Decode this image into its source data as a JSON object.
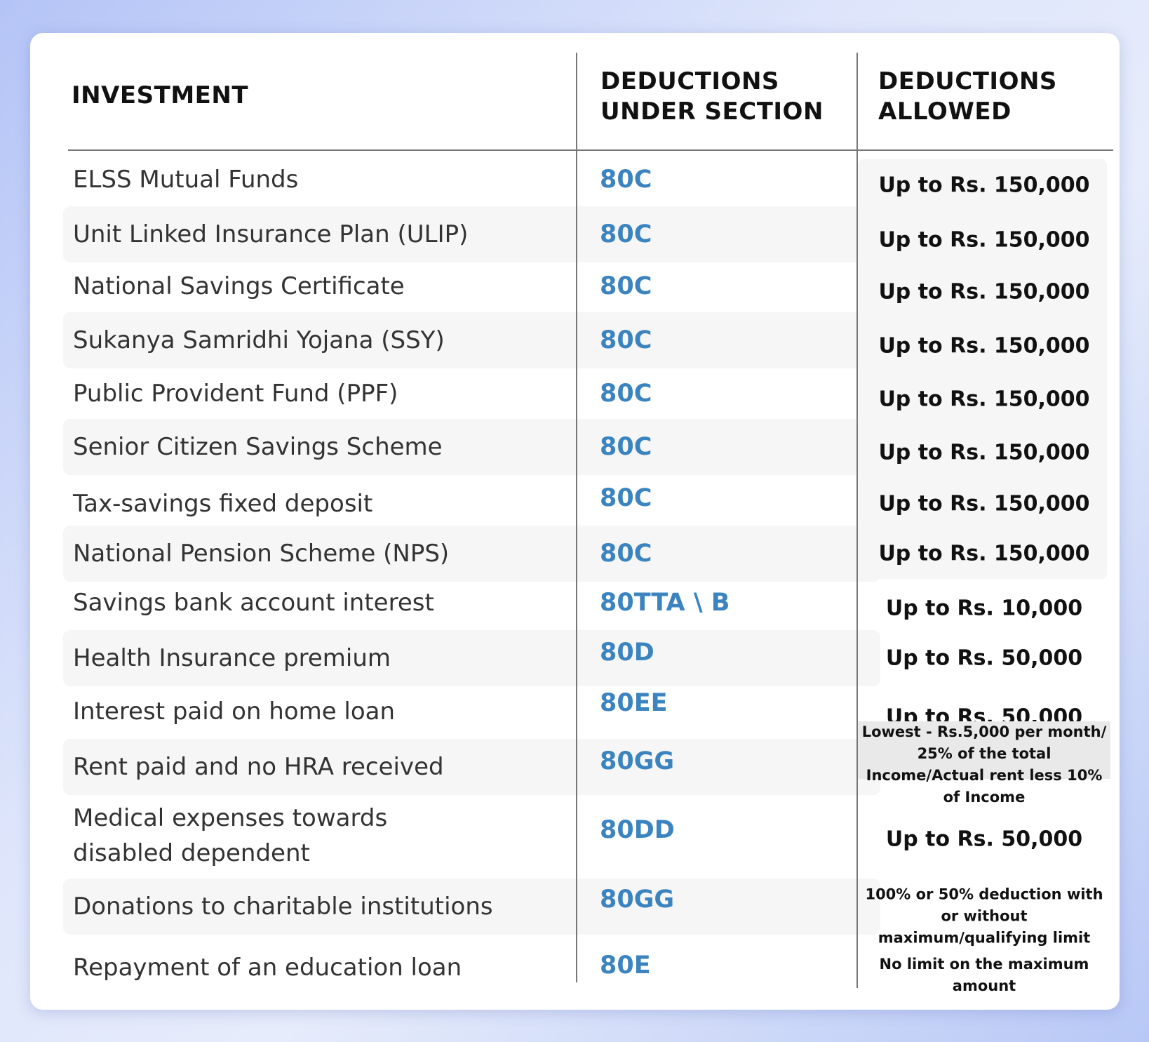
{
  "headers": {
    "investment": "INVESTMENT",
    "section": "DEDUCTIONS UNDER SECTION",
    "allowed": "DEDUCTIONS ALLOWED"
  },
  "colors": {
    "section_text": "#3b84bf",
    "row_shade": "#f6f6f6"
  },
  "rows": [
    {
      "investment": "ELSS Mutual Funds",
      "section": "80C",
      "allowed": "Up to Rs. 150,000"
    },
    {
      "investment": "Unit Linked Insurance Plan (ULIP)",
      "section": "80C",
      "allowed": "Up to Rs. 150,000"
    },
    {
      "investment": "National Savings Certificate",
      "section": "80C",
      "allowed": "Up to Rs. 150,000"
    },
    {
      "investment": "Sukanya Samridhi Yojana (SSY)",
      "section": "80C",
      "allowed": "Up to Rs. 150,000"
    },
    {
      "investment": "Public Provident Fund (PPF)",
      "section": "80C",
      "allowed": "Up to Rs. 150,000"
    },
    {
      "investment": "Senior Citizen Savings Scheme",
      "section": "80C",
      "allowed": "Up to Rs. 150,000"
    },
    {
      "investment": "Tax-savings fixed deposit",
      "section": "80C",
      "allowed": "Up to Rs. 150,000"
    },
    {
      "investment": "National Pension Scheme (NPS)",
      "section": "80C",
      "allowed": "Up to Rs. 150,000"
    },
    {
      "investment": "Savings bank account interest",
      "section": "80TTA \\ B",
      "allowed": "Up to Rs. 10,000"
    },
    {
      "investment": "Health Insurance premium",
      "section": "80D",
      "allowed": "Up to Rs. 50,000"
    },
    {
      "investment": "Interest paid on home loan",
      "section": "80EE",
      "allowed": "Up to Rs. 50,000"
    },
    {
      "investment": "Rent paid and no HRA received",
      "section": "80GG",
      "allowed": "Lowest - Rs.5,000 per month/ 25% of the total Income/Actual rent less 10% of Income"
    },
    {
      "investment": "Medical expenses towards disabled dependent",
      "section": "80DD",
      "allowed": "Up to Rs. 50,000"
    },
    {
      "investment": "Donations to charitable institutions",
      "section": "80GG",
      "allowed": "100% or 50% deduction with or without maximum/qualifying limit"
    },
    {
      "investment": "Repayment of an education loan",
      "section": "80E",
      "allowed": "No limit on the maximum amount"
    }
  ]
}
